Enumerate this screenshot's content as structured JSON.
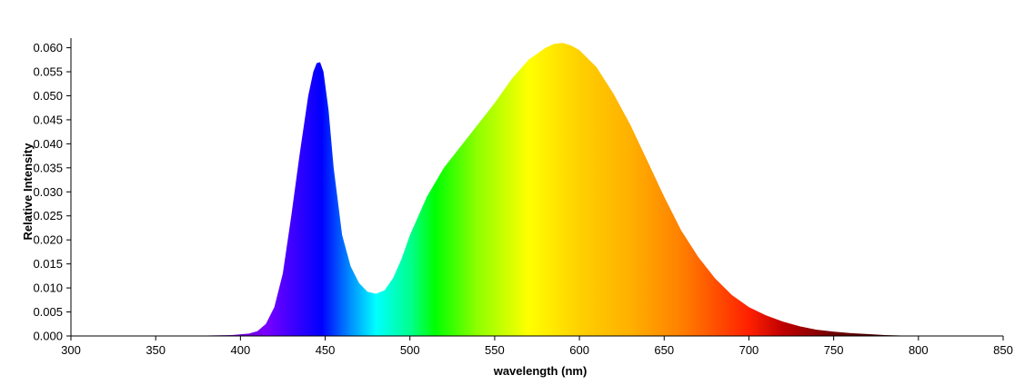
{
  "chart_data": {
    "type": "area",
    "title": "",
    "xlabel": "wavelength (nm)",
    "ylabel": "Relative Intensity",
    "xlim": [
      300,
      850
    ],
    "ylim": [
      0,
      0.062
    ],
    "x_ticks": [
      "300",
      "350",
      "400",
      "450",
      "500",
      "550",
      "600",
      "650",
      "700",
      "750",
      "800",
      "850"
    ],
    "y_ticks": [
      "0.000",
      "0.005",
      "0.010",
      "0.015",
      "0.020",
      "0.025",
      "0.030",
      "0.035",
      "0.040",
      "0.045",
      "0.050",
      "0.055",
      "0.060"
    ],
    "fill": "visible-spectrum color gradient",
    "grid": false,
    "legend": "none",
    "series": [
      {
        "x": [
          300,
          380,
          395,
          405,
          410,
          415,
          420,
          425,
          430,
          435,
          440,
          443,
          445,
          447,
          449,
          452,
          455,
          460,
          465,
          470,
          475,
          480,
          485,
          490,
          495,
          500,
          510,
          520,
          530,
          540,
          550,
          560,
          570,
          580,
          585,
          590,
          595,
          600,
          610,
          620,
          630,
          640,
          650,
          660,
          670,
          680,
          690,
          700,
          710,
          720,
          730,
          740,
          750,
          760,
          770,
          780,
          790,
          800,
          850
        ],
        "y": [
          0.0,
          0.0001,
          0.0002,
          0.0005,
          0.001,
          0.0025,
          0.006,
          0.013,
          0.025,
          0.038,
          0.05,
          0.055,
          0.0568,
          0.057,
          0.055,
          0.047,
          0.035,
          0.021,
          0.0145,
          0.011,
          0.0092,
          0.0088,
          0.0095,
          0.012,
          0.016,
          0.021,
          0.029,
          0.035,
          0.0395,
          0.044,
          0.0485,
          0.0535,
          0.0575,
          0.06,
          0.0608,
          0.061,
          0.0605,
          0.0595,
          0.056,
          0.0505,
          0.044,
          0.0365,
          0.029,
          0.022,
          0.0165,
          0.012,
          0.0085,
          0.006,
          0.0043,
          0.003,
          0.002,
          0.0013,
          0.0009,
          0.0006,
          0.0004,
          0.0002,
          0.0001,
          0.0,
          0.0
        ]
      }
    ]
  }
}
